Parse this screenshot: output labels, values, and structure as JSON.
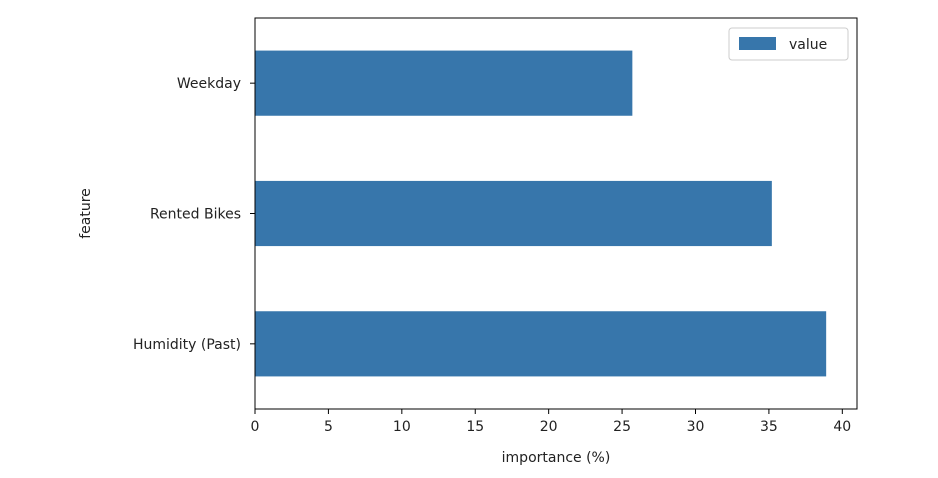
{
  "chart_data": {
    "type": "bar",
    "orientation": "horizontal",
    "categories": [
      "Humidity (Past)",
      "Rented Bikes",
      "Weekday"
    ],
    "series": [
      {
        "name": "value",
        "values": [
          38.9,
          35.2,
          25.7
        ],
        "color": "#3776ab"
      }
    ],
    "title": "",
    "xlabel": "importance (%)",
    "ylabel": "feature",
    "xlim": [
      0,
      41
    ],
    "xticks": [
      0,
      5,
      10,
      15,
      20,
      25,
      30,
      35,
      40
    ],
    "grid": false,
    "legend": {
      "position": "top-right",
      "entries": [
        "value"
      ]
    }
  },
  "colors": {
    "bar": "#3776ab",
    "axis": "#000000",
    "text": "#222222",
    "legend_border": "#cccccc"
  }
}
